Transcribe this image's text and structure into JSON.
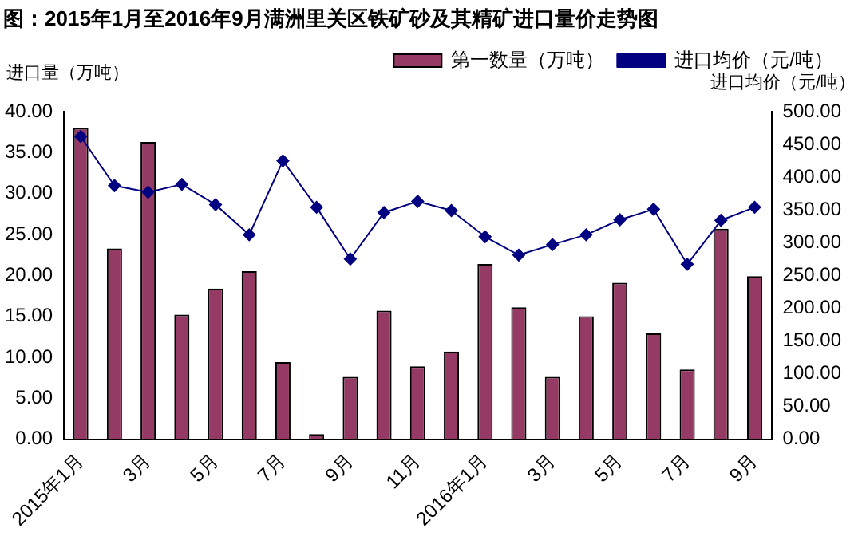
{
  "chart_data": {
    "type": "bar",
    "title": "图：2015年1月至2016年9月满洲里关区铁矿砂及其精矿进口量价走势图",
    "ylabel": "进口量（万吨）",
    "y2label": "进口均价（元/吨）",
    "categories": [
      "2015年1月",
      null,
      "3月",
      null,
      "5月",
      null,
      "7月",
      null,
      "9月",
      null,
      "11月",
      null,
      "2016年1月",
      null,
      "3月",
      null,
      "5月",
      null,
      "7月",
      null,
      "9月"
    ],
    "series": [
      {
        "name": "第一数量（万吨）",
        "color": "#943a65",
        "values": [
          38.0,
          23.3,
          36.3,
          15.2,
          18.4,
          20.5,
          9.4,
          0.6,
          7.6,
          15.7,
          8.9,
          10.7,
          21.4,
          16.1,
          7.6,
          15.0,
          19.1,
          12.9,
          8.5,
          25.7,
          19.9
        ]
      },
      {
        "name": "进口均价（元/吨）",
        "type": "line",
        "axis": "y2",
        "color": "#000080",
        "marker": "diamond",
        "values": [
          462,
          387,
          377,
          389,
          358,
          312,
          425,
          354,
          275,
          346,
          363,
          349,
          309,
          281,
          297,
          312,
          335,
          351,
          267,
          334,
          354
        ]
      }
    ],
    "ylim": [
      0,
      40
    ],
    "yticks": [
      {
        "value": 0,
        "label": "0.00"
      },
      {
        "value": 5,
        "label": "5.00"
      },
      {
        "value": 10,
        "label": "10.00"
      },
      {
        "value": 15,
        "label": "15.00"
      },
      {
        "value": 20,
        "label": "20.00"
      },
      {
        "value": 25,
        "label": "25.00"
      },
      {
        "value": 30,
        "label": "30.00"
      },
      {
        "value": 35,
        "label": "35.00"
      },
      {
        "value": 40,
        "label": "40.00"
      }
    ],
    "y2lim": [
      0,
      500
    ],
    "y2ticks": [
      {
        "value": 0,
        "label": "0.00"
      },
      {
        "value": 50,
        "label": "50.00"
      },
      {
        "value": 100,
        "label": "100.00"
      },
      {
        "value": 150,
        "label": "150.00"
      },
      {
        "value": 200,
        "label": "200.00"
      },
      {
        "value": 250,
        "label": "250.00"
      },
      {
        "value": 300,
        "label": "300.00"
      },
      {
        "value": 350,
        "label": "350.00"
      },
      {
        "value": 400,
        "label": "400.00"
      },
      {
        "value": 450,
        "label": "450.00"
      },
      {
        "value": 500,
        "label": "500.00"
      }
    ],
    "grid": false,
    "legend": "top right"
  }
}
